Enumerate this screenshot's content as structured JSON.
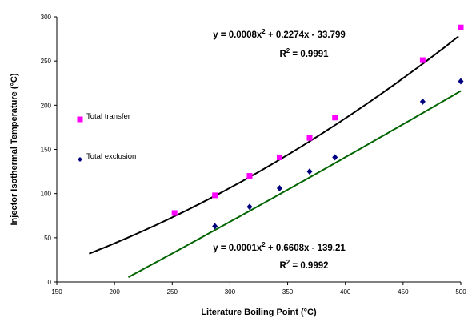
{
  "chart_data": {
    "type": "scatter",
    "title": "",
    "xlabel": "Literature Boiling Point (°C)",
    "ylabel": "Injector Isothermal Temperature (°C)",
    "xlim": [
      150,
      500
    ],
    "ylim": [
      0,
      300
    ],
    "x_ticks": [
      150,
      200,
      250,
      300,
      350,
      400,
      450,
      500
    ],
    "y_ticks": [
      0,
      50,
      100,
      150,
      200,
      250,
      300
    ],
    "grid": false,
    "legend": "left",
    "series": [
      {
        "name": "Total transfer",
        "marker": "square",
        "color": "#FF00FF",
        "x": [
          252,
          287,
          317,
          343,
          369,
          391,
          467,
          500
        ],
        "y": [
          78,
          98,
          120,
          141,
          163,
          186,
          251,
          288
        ],
        "fit": {
          "equation": "y = 0.0008x2 + 0.2274x - 33.799",
          "eq_main": "y = 0.0008x",
          "eq_tail": " + 0.2274x - 33.799",
          "r2_label": "R",
          "r2_value": " = 0.9991",
          "coef": [
            0.0008,
            0.2274,
            -33.799
          ],
          "x_range": [
            178,
            500
          ],
          "color": "#000000"
        }
      },
      {
        "name": "Total exclusion",
        "marker": "diamond",
        "color": "#000080",
        "x": [
          287,
          317,
          343,
          369,
          391,
          467,
          500
        ],
        "y": [
          63,
          85,
          106,
          125,
          141,
          204,
          227
        ],
        "fit": {
          "equation": "y = 0.0001x2 + 0.6608x - 139.21",
          "eq_main": "y = 0.0001x",
          "eq_tail": " + 0.6608x - 139.21",
          "r2_label": "R",
          "r2_value": " = 0.9992",
          "coef": [
            0.0001,
            0.6608,
            -139.21
          ],
          "x_range": [
            212,
            500
          ],
          "color": "#006400"
        }
      }
    ],
    "superscript": "2"
  }
}
